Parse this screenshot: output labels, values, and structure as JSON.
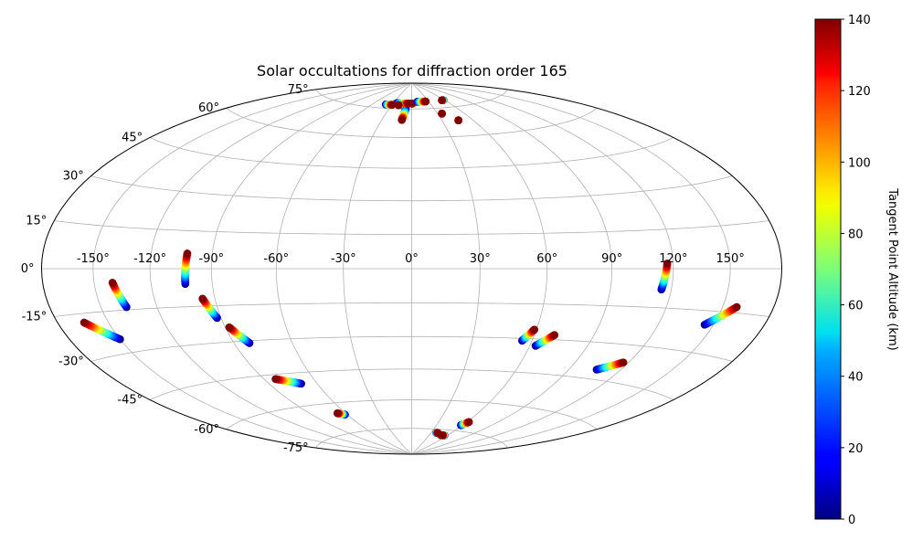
{
  "chart_data": {
    "type": "scatter",
    "projection": "hammer",
    "title": "Solar occultations for diffraction order 165",
    "lon_tick_labels": [
      "-150°",
      "-120°",
      "-90°",
      "-60°",
      "-30°",
      "0°",
      "30°",
      "60°",
      "90°",
      "120°",
      "150°"
    ],
    "lon_ticks": [
      -150,
      -120,
      -90,
      -60,
      -30,
      0,
      30,
      60,
      90,
      120,
      150
    ],
    "lat_tick_labels": [
      "75°",
      "60°",
      "45°",
      "30°",
      "15°",
      "0°",
      "-15°",
      "-30°",
      "-45°",
      "-60°",
      "-75°"
    ],
    "lat_ticks": [
      75,
      60,
      45,
      30,
      15,
      0,
      -15,
      -30,
      -45,
      -60,
      -75
    ],
    "grid": true,
    "colorbar": {
      "label": "Tangent Point Altitude (km)",
      "range": [
        0,
        140
      ],
      "tick_labels": [
        "0",
        "20",
        "40",
        "60",
        "80",
        "100",
        "120",
        "140"
      ],
      "ticks": [
        0,
        20,
        40,
        60,
        80,
        100,
        120,
        140
      ],
      "colormap": "jet"
    },
    "series": [
      {
        "lon_top": -102,
        "lat_top": 6,
        "lon_bottom": -103,
        "lat_bottom": -6
      },
      {
        "lon_top": -140,
        "lat_top": -5,
        "lon_bottom": -136,
        "lat_bottom": -14
      },
      {
        "lon_top": -164,
        "lat_top": -18,
        "lon_bottom": -150,
        "lat_bottom": -25
      },
      {
        "lon_top": -96,
        "lat_top": -12,
        "lon_bottom": -92,
        "lat_bottom": -20
      },
      {
        "lon_top": -88,
        "lat_top": -24,
        "lon_bottom": -82,
        "lat_bottom": -31
      },
      {
        "lon_top": -83,
        "lat_top": -47,
        "lon_bottom": -70,
        "lat_bottom": -50
      },
      {
        "lon_top": -67,
        "lat_top": -65,
        "lon_bottom": -62,
        "lat_bottom": -66
      },
      {
        "lon_top": 117,
        "lat_top": 2,
        "lon_bottom": 115,
        "lat_bottom": -8
      },
      {
        "lon_top": 158,
        "lat_top": -13,
        "lon_bottom": 145,
        "lat_bottom": -20
      },
      {
        "lon_top": 59,
        "lat_top": -26,
        "lon_bottom": 55,
        "lat_bottom": -31
      },
      {
        "lon_top": 70,
        "lat_top": -28,
        "lon_bottom": 63,
        "lat_bottom": -33
      },
      {
        "lon_top": 117,
        "lat_top": -37,
        "lon_bottom": 106,
        "lat_bottom": -41
      },
      {
        "lon_top": 62,
        "lat_top": -70,
        "lon_bottom": 58,
        "lat_bottom": -72
      },
      {
        "lon_top": 50,
        "lat_top": -78,
        "lon_bottom": 48,
        "lat_bottom": -78
      },
      {
        "lon_top": 52,
        "lat_top": -78,
        "lon_bottom": 55,
        "lat_bottom": -78
      },
      {
        "lon_top": 40,
        "lat_top": -77,
        "lon_bottom": 38,
        "lat_bottom": -77
      },
      {
        "lon_top": -10,
        "lat_top": 69,
        "lon_bottom": -8,
        "lat_bottom": 75
      },
      {
        "lon_top": -5,
        "lat_top": 78,
        "lon_bottom": -25,
        "lat_bottom": 78
      },
      {
        "lon_top": -30,
        "lat_top": 77,
        "lon_bottom": -40,
        "lat_bottom": 77
      },
      {
        "lon_top": -20,
        "lat_top": 77,
        "lon_bottom": -18,
        "lat_bottom": 77
      },
      {
        "lon_top": 0,
        "lat_top": 78,
        "lon_bottom": 2,
        "lat_bottom": 78
      },
      {
        "lon_top": 25,
        "lat_top": 79,
        "lon_bottom": 10,
        "lat_bottom": 79
      },
      {
        "lon_top": 55,
        "lat_top": 79,
        "lon_bottom": 58,
        "lat_bottom": 79
      },
      {
        "lon_top": 35,
        "lat_top": 72,
        "lon_bottom": 35,
        "lat_bottom": 72
      },
      {
        "lon_top": 46,
        "lat_top": 68,
        "lon_bottom": 46,
        "lat_bottom": 68
      }
    ]
  }
}
